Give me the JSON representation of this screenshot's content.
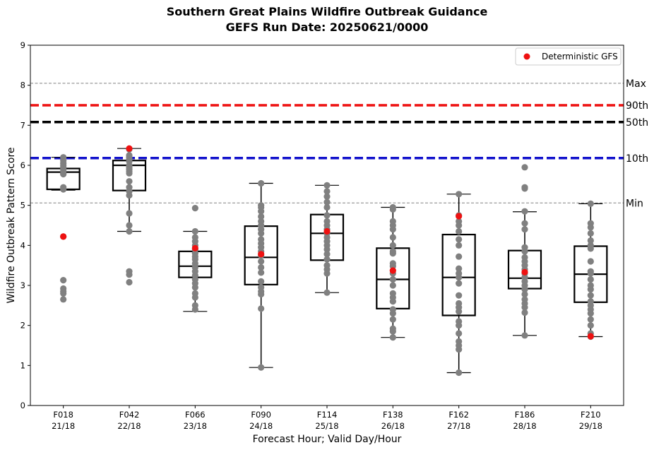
{
  "chart_data": {
    "type": "box",
    "title_line1": "Southern Great Plains Wildfire Outbreak Guidance",
    "title_line2": "GEFS Run Date: 20250621/0000",
    "xlabel": "Forecast Hour; Valid Day/Hour",
    "ylabel": "Wildfire Outbreak Pattern Score",
    "ylim": [
      0,
      9
    ],
    "yticks": [
      "0",
      "1",
      "2",
      "3",
      "4",
      "5",
      "6",
      "7",
      "8",
      "9"
    ],
    "grid": false,
    "legend": {
      "position": "top-right",
      "label": "Deterministic GFS"
    },
    "colors": {
      "ensemble": "#808080",
      "deterministic": "#ee1111",
      "p90": "#ee1111",
      "p50": "#000000",
      "p10": "#1111cc",
      "minmax": "#808080"
    },
    "reference_lines": [
      {
        "label": "Max",
        "value": 8.05,
        "style": "dashed-thin"
      },
      {
        "label": "90th",
        "value": 7.5,
        "style": "dashed-thick",
        "color": "#ee1111"
      },
      {
        "label": "50th",
        "value": 7.08,
        "style": "dashed-thick",
        "color": "#000000"
      },
      {
        "label": "10th",
        "value": 6.18,
        "style": "dashed-thick",
        "color": "#1111cc"
      },
      {
        "label": "Min",
        "value": 5.06,
        "style": "dashed-thin"
      }
    ],
    "categories": [
      {
        "hour": "F018",
        "valid": "21/18",
        "box": {
          "whisker_low": 5.38,
          "q1": 5.4,
          "median": 5.83,
          "q3": 5.92,
          "whisker_high": 6.2
        },
        "members": [
          6.2,
          6.12,
          6.05,
          6.0,
          5.95,
          5.9,
          5.85,
          5.8,
          5.78,
          5.45,
          5.4,
          4.22,
          3.13,
          2.92,
          2.85,
          2.8,
          2.65
        ],
        "deterministic": 4.22
      },
      {
        "hour": "F042",
        "valid": "22/18",
        "box": {
          "whisker_low": 4.35,
          "q1": 5.37,
          "median": 6.0,
          "q3": 6.12,
          "whisker_high": 6.42
        },
        "members": [
          6.4,
          6.25,
          6.2,
          6.15,
          6.1,
          6.0,
          5.95,
          5.9,
          5.85,
          5.8,
          5.6,
          5.45,
          5.35,
          5.25,
          4.8,
          4.5,
          4.35,
          3.35,
          3.27,
          3.08
        ],
        "deterministic": 6.42
      },
      {
        "hour": "F066",
        "valid": "23/18",
        "box": {
          "whisker_low": 2.35,
          "q1": 3.2,
          "median": 3.48,
          "q3": 3.85,
          "whisker_high": 4.35
        },
        "members": [
          4.93,
          4.35,
          4.2,
          4.1,
          4.0,
          3.9,
          3.8,
          3.72,
          3.65,
          3.55,
          3.45,
          3.35,
          3.25,
          3.15,
          3.05,
          2.95,
          2.8,
          2.7,
          2.5,
          2.4
        ],
        "deterministic": 3.93
      },
      {
        "hour": "F090",
        "valid": "24/18",
        "box": {
          "whisker_low": 0.95,
          "q1": 3.02,
          "median": 3.7,
          "q3": 4.48,
          "whisker_high": 5.55
        },
        "members": [
          5.55,
          5.0,
          4.95,
          4.85,
          4.72,
          4.6,
          4.5,
          4.4,
          4.3,
          4.15,
          4.05,
          3.95,
          3.85,
          3.75,
          3.6,
          3.45,
          3.32,
          3.1,
          2.95,
          2.85,
          2.78,
          2.42,
          0.95
        ],
        "deterministic": 3.78
      },
      {
        "hour": "F114",
        "valid": "25/18",
        "box": {
          "whisker_low": 2.82,
          "q1": 3.63,
          "median": 4.3,
          "q3": 4.77,
          "whisker_high": 5.5
        },
        "members": [
          5.5,
          5.35,
          5.22,
          5.08,
          4.95,
          4.75,
          4.6,
          4.5,
          4.4,
          4.3,
          4.2,
          4.1,
          4.0,
          3.9,
          3.78,
          3.65,
          3.5,
          3.4,
          3.3,
          2.82
        ],
        "deterministic": 4.35
      },
      {
        "hour": "F138",
        "valid": "26/18",
        "box": {
          "whisker_low": 1.7,
          "q1": 2.42,
          "median": 3.15,
          "q3": 3.93,
          "whisker_high": 4.95
        },
        "members": [
          4.95,
          4.9,
          4.6,
          4.5,
          4.4,
          4.2,
          4.0,
          3.85,
          3.8,
          3.55,
          3.48,
          3.3,
          3.15,
          3.0,
          2.8,
          2.7,
          2.6,
          2.4,
          2.3,
          2.15,
          1.92,
          1.85,
          1.7
        ],
        "deterministic": 3.37
      },
      {
        "hour": "F162",
        "valid": "27/18",
        "box": {
          "whisker_low": 0.82,
          "q1": 2.25,
          "median": 3.2,
          "q3": 4.27,
          "whisker_high": 5.28
        },
        "members": [
          5.28,
          4.75,
          4.6,
          4.5,
          4.35,
          4.15,
          4.0,
          3.72,
          3.42,
          3.3,
          3.2,
          3.05,
          2.75,
          2.55,
          2.45,
          2.35,
          2.1,
          2.0,
          1.8,
          1.6,
          1.5,
          1.4,
          0.82
        ],
        "deterministic": 4.73
      },
      {
        "hour": "F186",
        "valid": "28/18",
        "box": {
          "whisker_low": 1.75,
          "q1": 2.92,
          "median": 3.18,
          "q3": 3.87,
          "whisker_high": 4.84
        },
        "members": [
          5.95,
          5.45,
          5.42,
          4.85,
          4.55,
          4.4,
          3.95,
          3.85,
          3.7,
          3.6,
          3.5,
          3.4,
          3.3,
          3.2,
          3.1,
          3.0,
          2.9,
          2.78,
          2.65,
          2.55,
          2.45,
          2.32,
          1.75
        ],
        "deterministic": 3.33
      },
      {
        "hour": "F210",
        "valid": "29/18",
        "box": {
          "whisker_low": 1.72,
          "q1": 2.58,
          "median": 3.28,
          "q3": 3.98,
          "whisker_high": 5.04
        },
        "members": [
          5.04,
          4.55,
          4.45,
          4.3,
          4.12,
          4.0,
          3.92,
          3.6,
          3.35,
          3.3,
          3.15,
          3.0,
          2.9,
          2.75,
          2.6,
          2.5,
          2.4,
          2.3,
          2.15,
          2.0,
          1.8,
          1.72
        ],
        "deterministic": 1.73
      }
    ]
  }
}
